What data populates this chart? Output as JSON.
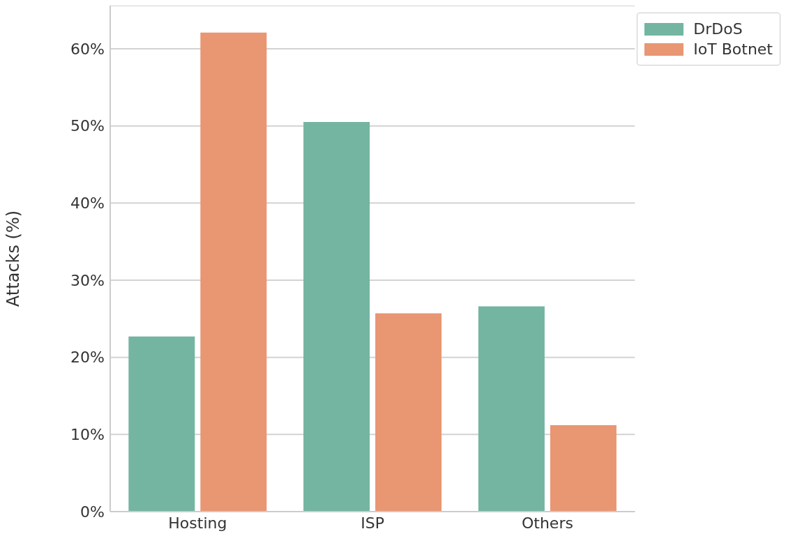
{
  "chart_data": {
    "type": "bar",
    "ylabel": "Attacks (%)",
    "categories": [
      "Hosting",
      "ISP",
      "Others"
    ],
    "series": [
      {
        "name": "DrDoS",
        "color": "#73b5a1",
        "values": [
          22.7,
          50.5,
          26.6
        ]
      },
      {
        "name": "IoT Botnet",
        "color": "#e99673",
        "values": [
          62.1,
          25.7,
          11.2
        ]
      }
    ],
    "ylim": [
      0,
      65.6
    ],
    "yticks": [
      {
        "value": 0,
        "label": "0%"
      },
      {
        "value": 10,
        "label": "10%"
      },
      {
        "value": 20,
        "label": "20%"
      },
      {
        "value": 30,
        "label": "30%"
      },
      {
        "value": 40,
        "label": "40%"
      },
      {
        "value": 50,
        "label": "50%"
      },
      {
        "value": 60,
        "label": "60%"
      }
    ],
    "grid": "y",
    "legend": "top right"
  }
}
